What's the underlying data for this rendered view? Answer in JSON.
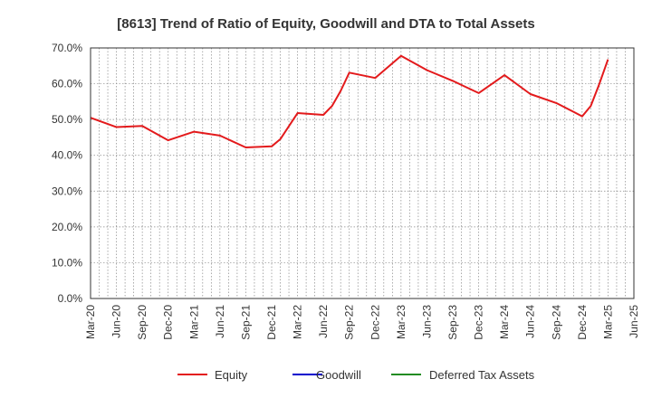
{
  "chart_data": {
    "type": "line",
    "title": "[8613]  Trend of Ratio of Equity, Goodwill and DTA to Total Assets",
    "xlabel": "",
    "ylabel": "",
    "ylim": [
      0,
      70
    ],
    "y_ticks": [
      "0.0%",
      "10.0%",
      "20.0%",
      "30.0%",
      "40.0%",
      "50.0%",
      "60.0%",
      "70.0%"
    ],
    "x_ticks": [
      "Mar-20",
      "Jun-20",
      "Sep-20",
      "Dec-20",
      "Mar-21",
      "Jun-21",
      "Sep-21",
      "Dec-21",
      "Mar-22",
      "Jun-22",
      "Sep-22",
      "Dec-22",
      "Mar-23",
      "Jun-23",
      "Sep-23",
      "Dec-23",
      "Mar-24",
      "Jun-24",
      "Sep-24",
      "Dec-24",
      "Mar-25",
      "Jun-25"
    ],
    "grid": true,
    "legend_position": "bottom",
    "series": [
      {
        "name": "Equity",
        "color": "#e31a1c",
        "x": [
          "Mar-20",
          "Jun-20",
          "Sep-20",
          "Dec-20",
          "Mar-21",
          "Jun-21",
          "Sep-21",
          "Dec-21",
          "Jan-22",
          "Mar-22",
          "Jun-22",
          "Jul-22",
          "Aug-22",
          "Sep-22",
          "Dec-22",
          "Mar-23",
          "Jun-23",
          "Sep-23",
          "Dec-23",
          "Mar-24",
          "Jun-24",
          "Sep-24",
          "Dec-24",
          "Jan-25",
          "Feb-25",
          "Mar-25"
        ],
        "values": [
          50.5,
          47.9,
          48.2,
          44.2,
          46.6,
          45.5,
          42.2,
          42.5,
          44.5,
          51.8,
          51.3,
          53.8,
          58.0,
          63.1,
          61.6,
          67.8,
          63.8,
          60.8,
          57.4,
          62.4,
          57.1,
          54.6,
          50.9,
          53.8,
          60.0,
          66.8
        ]
      },
      {
        "name": "Goodwill",
        "color": "#0000cd",
        "x": [],
        "values": []
      },
      {
        "name": "Deferred Tax Assets",
        "color": "#228b22",
        "x": [],
        "values": []
      }
    ]
  }
}
